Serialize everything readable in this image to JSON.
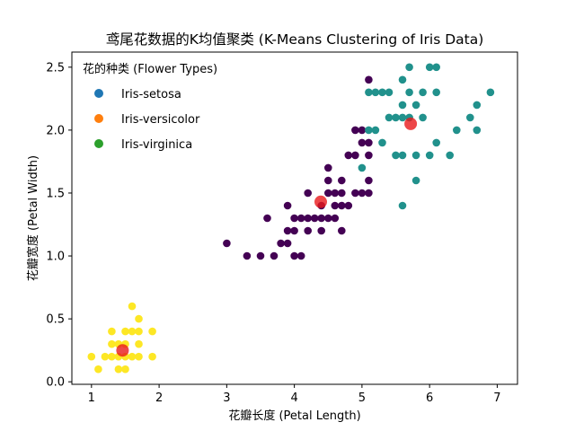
{
  "chart_data": {
    "type": "scatter",
    "title": "鸢尾花数据的K均值聚类 (K-Means Clustering of Iris Data)",
    "xlabel": "花瓣长度 (Petal Length)",
    "ylabel": "花瓣宽度 (Petal Width)",
    "xlim": [
      0.71,
      7.3
    ],
    "ylim": [
      -0.02,
      2.62
    ],
    "xticks": [
      1,
      2,
      3,
      4,
      5,
      6,
      7
    ],
    "yticks": [
      0.0,
      0.5,
      1.0,
      1.5,
      2.0,
      2.5
    ],
    "xtick_labels": [
      "1",
      "2",
      "3",
      "4",
      "5",
      "6",
      "7"
    ],
    "ytick_labels": [
      "0.0",
      "0.5",
      "1.0",
      "1.5",
      "2.0",
      "2.5"
    ],
    "grid": false,
    "legend": {
      "title": "花的种类 (Flower Types)",
      "placement": "top-left",
      "entries": [
        {
          "label": "Iris-setosa",
          "color": "#1f77b4"
        },
        {
          "label": "Iris-versicolor",
          "color": "#ff7f0e"
        },
        {
          "label": "Iris-virginica",
          "color": "#2ca02c"
        }
      ]
    },
    "clusters": [
      {
        "color": "#fde725",
        "points": [
          [
            1.0,
            0.2
          ],
          [
            1.1,
            0.1
          ],
          [
            1.2,
            0.2
          ],
          [
            1.3,
            0.2
          ],
          [
            1.3,
            0.3
          ],
          [
            1.3,
            0.4
          ],
          [
            1.4,
            0.1
          ],
          [
            1.4,
            0.2
          ],
          [
            1.4,
            0.3
          ],
          [
            1.5,
            0.1
          ],
          [
            1.5,
            0.2
          ],
          [
            1.5,
            0.3
          ],
          [
            1.5,
            0.4
          ],
          [
            1.6,
            0.2
          ],
          [
            1.6,
            0.4
          ],
          [
            1.6,
            0.6
          ],
          [
            1.7,
            0.2
          ],
          [
            1.7,
            0.3
          ],
          [
            1.7,
            0.4
          ],
          [
            1.7,
            0.5
          ],
          [
            1.9,
            0.2
          ],
          [
            1.9,
            0.4
          ]
        ]
      },
      {
        "color": "#440154",
        "points": [
          [
            3.0,
            1.1
          ],
          [
            3.3,
            1.0
          ],
          [
            3.5,
            1.0
          ],
          [
            3.6,
            1.3
          ],
          [
            3.7,
            1.0
          ],
          [
            3.8,
            1.1
          ],
          [
            3.9,
            1.1
          ],
          [
            3.9,
            1.2
          ],
          [
            3.9,
            1.4
          ],
          [
            4.0,
            1.0
          ],
          [
            4.0,
            1.2
          ],
          [
            4.0,
            1.3
          ],
          [
            4.1,
            1.0
          ],
          [
            4.1,
            1.3
          ],
          [
            4.2,
            1.2
          ],
          [
            4.2,
            1.3
          ],
          [
            4.2,
            1.5
          ],
          [
            4.3,
            1.3
          ],
          [
            4.4,
            1.2
          ],
          [
            4.4,
            1.3
          ],
          [
            4.4,
            1.4
          ],
          [
            4.5,
            1.3
          ],
          [
            4.5,
            1.5
          ],
          [
            4.5,
            1.6
          ],
          [
            4.5,
            1.7
          ],
          [
            4.6,
            1.3
          ],
          [
            4.6,
            1.4
          ],
          [
            4.6,
            1.5
          ],
          [
            4.7,
            1.2
          ],
          [
            4.7,
            1.4
          ],
          [
            4.7,
            1.5
          ],
          [
            4.7,
            1.6
          ],
          [
            4.8,
            1.4
          ],
          [
            4.8,
            1.8
          ],
          [
            4.9,
            1.5
          ],
          [
            4.9,
            1.8
          ],
          [
            4.9,
            2.0
          ],
          [
            5.0,
            1.5
          ],
          [
            5.0,
            1.9
          ],
          [
            5.0,
            2.0
          ],
          [
            5.1,
            1.5
          ],
          [
            5.1,
            1.6
          ],
          [
            5.1,
            1.8
          ],
          [
            5.1,
            1.9
          ],
          [
            5.1,
            2.4
          ]
        ]
      },
      {
        "color": "#21918c",
        "points": [
          [
            5.0,
            1.7
          ],
          [
            5.1,
            2.0
          ],
          [
            5.1,
            2.3
          ],
          [
            5.2,
            2.0
          ],
          [
            5.2,
            2.3
          ],
          [
            5.3,
            1.9
          ],
          [
            5.3,
            2.3
          ],
          [
            5.4,
            2.1
          ],
          [
            5.4,
            2.3
          ],
          [
            5.5,
            1.8
          ],
          [
            5.5,
            2.1
          ],
          [
            5.6,
            1.4
          ],
          [
            5.6,
            1.8
          ],
          [
            5.6,
            2.1
          ],
          [
            5.6,
            2.2
          ],
          [
            5.6,
            2.4
          ],
          [
            5.7,
            2.1
          ],
          [
            5.7,
            2.3
          ],
          [
            5.7,
            2.5
          ],
          [
            5.8,
            1.6
          ],
          [
            5.8,
            1.8
          ],
          [
            5.8,
            2.2
          ],
          [
            5.9,
            2.1
          ],
          [
            5.9,
            2.3
          ],
          [
            6.0,
            1.8
          ],
          [
            6.0,
            2.5
          ],
          [
            6.1,
            1.9
          ],
          [
            6.1,
            2.3
          ],
          [
            6.1,
            2.5
          ],
          [
            6.3,
            1.8
          ],
          [
            6.4,
            2.0
          ],
          [
            6.6,
            2.1
          ],
          [
            6.7,
            2.0
          ],
          [
            6.7,
            2.2
          ],
          [
            6.9,
            2.3
          ]
        ]
      }
    ],
    "centroids": {
      "color": "#e8191c",
      "points": [
        [
          1.46,
          0.25
        ],
        [
          4.39,
          1.43
        ],
        [
          5.72,
          2.05
        ]
      ]
    }
  }
}
